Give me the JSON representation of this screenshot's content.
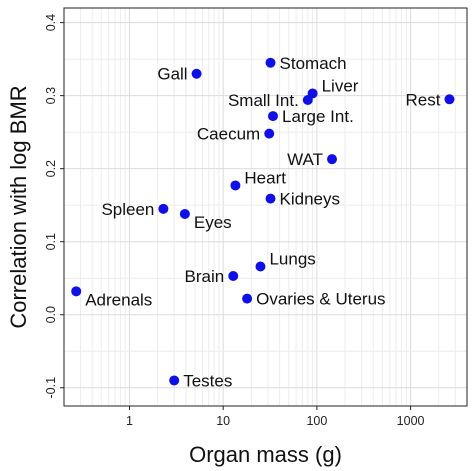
{
  "chart_data": {
    "type": "scatter",
    "xlabel": "Organ mass (g)",
    "ylabel": "Correlation with log BMR",
    "x_scale": "log10",
    "xlim": [
      0.2,
      4000
    ],
    "ylim": [
      -0.125,
      0.42
    ],
    "x_ticks": [
      1,
      10,
      100,
      1000
    ],
    "x_tick_labels": [
      "1",
      "10",
      "100",
      "1000"
    ],
    "y_ticks": [
      -0.1,
      0.0,
      0.1,
      0.2,
      0.3,
      0.4
    ],
    "y_tick_labels": [
      "-0.1",
      "0.0",
      "0.1",
      "0.2",
      "0.3",
      "0.4"
    ],
    "grid": true,
    "point_color": "#1010e6",
    "points": [
      {
        "label": "Stomach",
        "x": 32,
        "y": 0.345,
        "label_pos": "right"
      },
      {
        "label": "Gall",
        "x": 5.2,
        "y": 0.33,
        "label_pos": "left"
      },
      {
        "label": "Liver",
        "x": 90,
        "y": 0.303,
        "label_pos": "upper-right"
      },
      {
        "label": "Small Int.",
        "x": 80,
        "y": 0.294,
        "label_pos": "left"
      },
      {
        "label": "Rest",
        "x": 2600,
        "y": 0.295,
        "label_pos": "left"
      },
      {
        "label": "Large Int.",
        "x": 34,
        "y": 0.272,
        "label_pos": "right"
      },
      {
        "label": "Caecum",
        "x": 31,
        "y": 0.248,
        "label_pos": "left"
      },
      {
        "label": "WAT",
        "x": 145,
        "y": 0.213,
        "label_pos": "left"
      },
      {
        "label": "Heart",
        "x": 13.5,
        "y": 0.177,
        "label_pos": "upper-right"
      },
      {
        "label": "Kidneys",
        "x": 32,
        "y": 0.159,
        "label_pos": "right"
      },
      {
        "label": "Spleen",
        "x": 2.3,
        "y": 0.145,
        "label_pos": "left"
      },
      {
        "label": "Eyes",
        "x": 3.9,
        "y": 0.138,
        "label_pos": "lower-right"
      },
      {
        "label": "Lungs",
        "x": 25,
        "y": 0.066,
        "label_pos": "upper-right"
      },
      {
        "label": "Brain",
        "x": 12.8,
        "y": 0.053,
        "label_pos": "left"
      },
      {
        "label": "Adrenals",
        "x": 0.27,
        "y": 0.032,
        "label_pos": "lower-right"
      },
      {
        "label": "Ovaries & Uterus",
        "x": 18,
        "y": 0.022,
        "label_pos": "right"
      },
      {
        "label": "Testes",
        "x": 3.0,
        "y": -0.09,
        "label_pos": "right"
      }
    ]
  }
}
